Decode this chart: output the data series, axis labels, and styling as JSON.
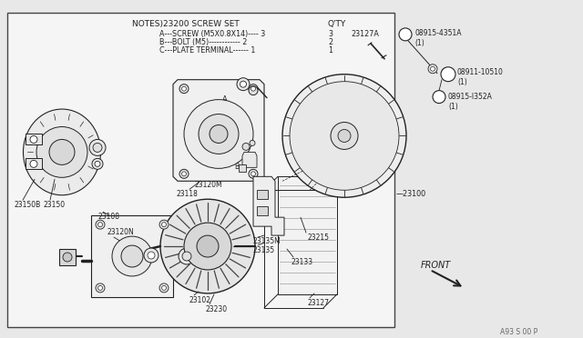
{
  "bg_color": "#e8e8e8",
  "box_bg": "#f5f5f5",
  "right_bg": "#e8e8e8",
  "border_color": "#444444",
  "lc": "#222222",
  "tc": "#222222",
  "title": "NOTES)23200 SCREW SET",
  "qty_label": "Q'TY",
  "note_a": "A---SCREW (M5X0.8X14)---- 3",
  "note_b": "B---BOLT (M5)------------ 2",
  "note_c": "C---PLATE TERMINAL------ 1",
  "p23127A": "23127A",
  "p23100": "23100",
  "p23118": "23118",
  "p23120M": "23120M",
  "p23150B": "23150B",
  "p23150": "23150",
  "p23108": "23108",
  "p23120N": "23120N",
  "p23102": "23102",
  "p23230": "23230",
  "p23135M": "23135M",
  "p23135": "23135",
  "p23215": "23215",
  "p23133": "23133",
  "p23127": "23127",
  "p08915_4351A": "08915-4351A",
  "q08915_4351A": "(1)",
  "p08911_10510": "08911-10510",
  "q08911_10510": "(1)",
  "p08915_1352A": "08915-I352A",
  "q08915_1352A": "(1)",
  "front_label": "FRONT",
  "watermark": "A93 S 00 P"
}
